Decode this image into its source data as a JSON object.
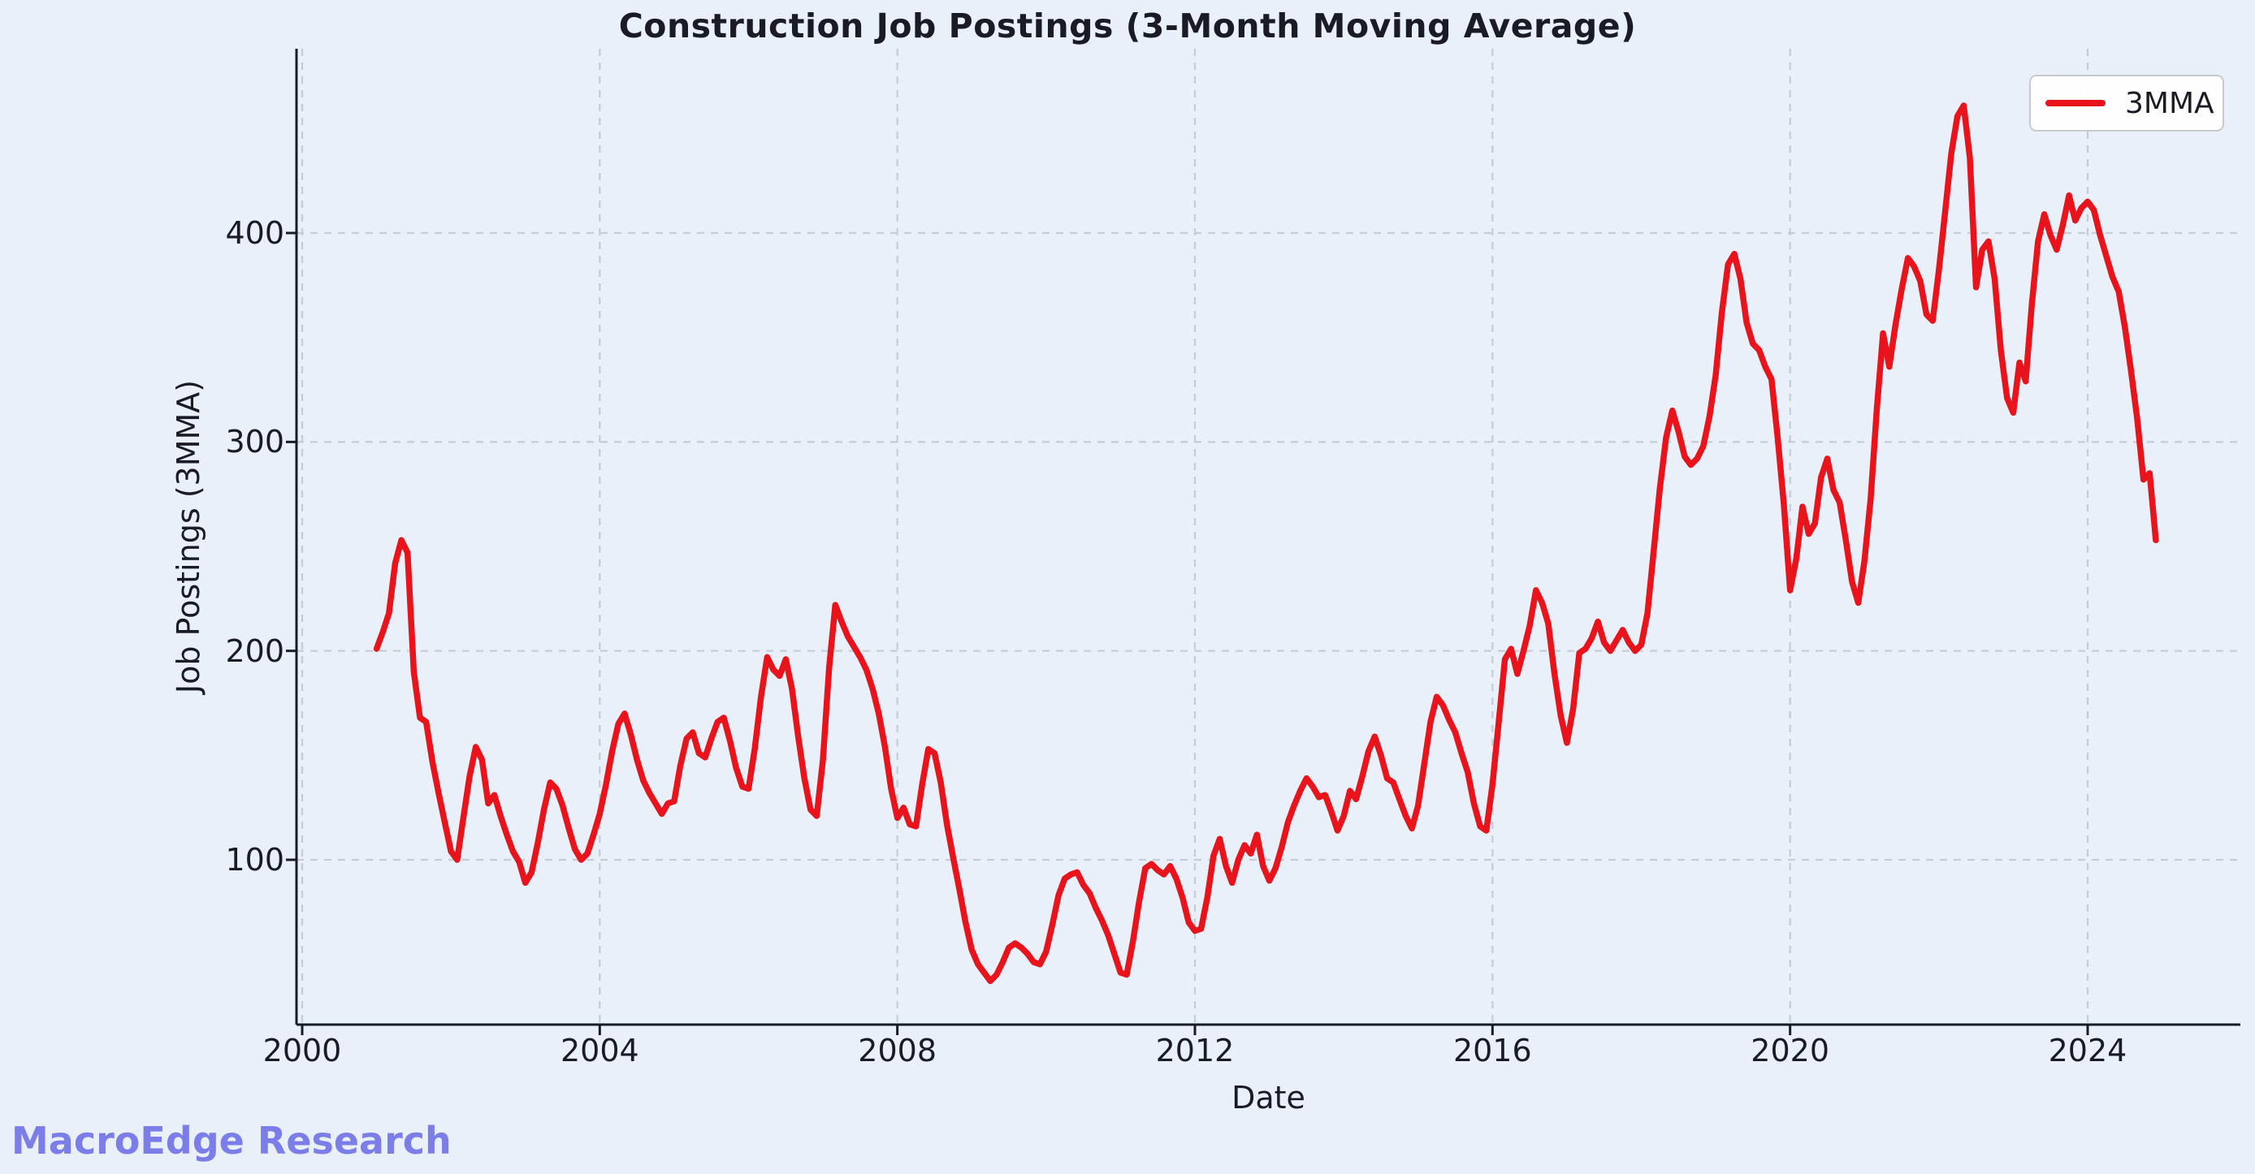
{
  "title": "Construction Job Postings (3-Month Moving Average)",
  "watermark": "MacroEdge Research",
  "legend": {
    "label": "3MMA"
  },
  "axes": {
    "xlabel": "Date",
    "ylabel": "Job Postings (3MMA)",
    "x_ticks": [
      2000,
      2004,
      2008,
      2012,
      2016,
      2020,
      2024
    ],
    "y_ticks": [
      100,
      200,
      300,
      400
    ]
  },
  "colors": {
    "background": "#e9f0f9",
    "line": "#e8131b",
    "grid": "#c6ccd6",
    "spine": "#1b1b26",
    "text": "#1b1b26",
    "watermark": "#7b7ee9",
    "legend_border": "#c9c9c9",
    "legend_fill": "#ffffff"
  },
  "chart_data": {
    "type": "line",
    "title": "Construction Job Postings (3-Month Moving Average)",
    "xlabel": "Date",
    "ylabel": "Job Postings (3MMA)",
    "x_range": [
      2000,
      2026.05
    ],
    "y_axis_ticks": [
      100,
      200,
      300,
      400
    ],
    "grid": "both, dashed",
    "legend_position": "upper right",
    "series": [
      {
        "name": "3MMA",
        "color": "#e8131b",
        "cadence": "monthly (x = year + month_index/12)",
        "start_year": 2001,
        "points_by_year": {
          "2001": [
            201,
            209,
            218,
            242,
            253,
            247,
            190,
            168,
            166,
            147,
            132,
            118
          ],
          "2002": [
            104,
            100,
            120,
            140,
            154,
            148,
            127,
            131,
            121,
            112,
            104,
            99
          ],
          "2003": [
            89,
            94,
            108,
            124,
            137,
            134,
            126,
            115,
            105,
            100,
            103,
            112
          ],
          "2004": [
            122,
            136,
            152,
            165,
            170,
            160,
            148,
            138,
            132,
            127,
            122,
            127
          ],
          "2005": [
            128,
            145,
            158,
            161,
            151,
            149,
            158,
            166,
            168,
            157,
            144,
            135
          ],
          "2006": [
            134,
            153,
            178,
            197,
            191,
            188,
            196,
            182,
            159,
            139,
            124,
            121
          ],
          "2007": [
            148,
            192,
            222,
            214,
            207,
            202,
            197,
            191,
            182,
            170,
            154,
            134
          ],
          "2008": [
            120,
            125,
            117,
            116,
            136,
            153,
            151,
            137,
            117,
            101,
            86,
            70
          ],
          "2009": [
            57,
            50,
            46,
            42,
            45,
            51,
            58,
            60,
            58,
            55,
            51,
            50
          ],
          "2010": [
            56,
            69,
            83,
            91,
            93,
            94,
            88,
            84,
            77,
            71,
            64,
            55
          ],
          "2011": [
            46,
            45,
            61,
            80,
            96,
            98,
            95,
            93,
            97,
            91,
            82,
            70
          ],
          "2012": [
            66,
            67,
            82,
            102,
            110,
            97,
            89,
            100,
            107,
            103,
            112,
            97
          ],
          "2013": [
            90,
            96,
            106,
            118,
            126,
            133,
            139,
            135,
            130,
            131,
            123,
            114
          ],
          "2014": [
            121,
            133,
            129,
            140,
            152,
            159,
            150,
            139,
            137,
            129,
            121,
            115
          ],
          "2015": [
            126,
            146,
            166,
            178,
            174,
            167,
            161,
            151,
            142,
            127,
            116,
            114
          ],
          "2016": [
            136,
            166,
            196,
            201,
            189,
            200,
            212,
            229,
            223,
            213,
            189,
            169
          ],
          "2017": [
            156,
            172,
            199,
            201,
            206,
            214,
            204,
            200,
            205,
            210,
            204,
            200
          ],
          "2018": [
            203,
            218,
            248,
            278,
            302,
            315,
            305,
            293,
            289,
            292,
            298,
            312
          ],
          "2019": [
            332,
            362,
            385,
            390,
            378,
            357,
            347,
            344,
            336,
            330,
            302,
            270
          ],
          "2020": [
            229,
            244,
            269,
            256,
            261,
            283,
            292,
            277,
            271,
            253,
            233,
            223
          ],
          "2021": [
            243,
            273,
            316,
            352,
            336,
            356,
            373,
            388,
            384,
            377,
            361,
            358
          ],
          "2022": [
            382,
            410,
            438,
            456,
            461,
            436,
            374,
            392,
            396,
            378,
            344,
            321
          ],
          "2023": [
            314,
            338,
            329,
            366,
            396,
            409,
            399,
            392,
            404,
            418,
            406,
            412
          ],
          "2024": [
            415,
            411,
            399,
            389,
            379,
            372,
            355,
            334,
            311,
            282,
            285,
            253
          ]
        }
      }
    ]
  }
}
